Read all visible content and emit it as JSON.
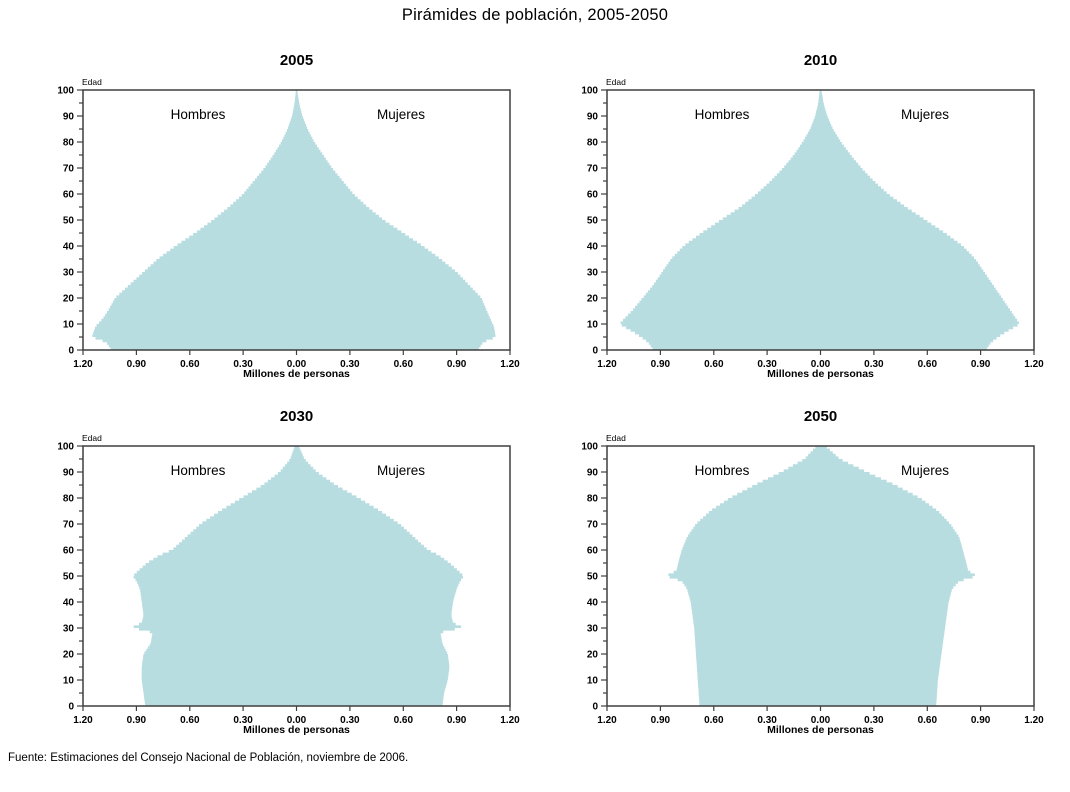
{
  "page": {
    "title": "Pirámides de población, 2005-2050",
    "source": "Fuente: Estimaciones del Consejo Nacional de Población, noviembre de 2006."
  },
  "colors": {
    "pyramid_fill": "#b8dde0",
    "axis_line": "#3f3f3f",
    "text": "#000000"
  },
  "chart_data": [
    {
      "type": "area",
      "subtype": "population-pyramid",
      "title": "2005",
      "xlabel": "Millones de personas",
      "ylabel": "Edad",
      "xlim_millions": [
        -1.2,
        1.2
      ],
      "ylim_age": [
        0,
        100
      ],
      "x_ticks": [
        "1.20",
        "0.90",
        "0.60",
        "0.30",
        "0.00",
        "0.30",
        "0.60",
        "0.90",
        "1.20"
      ],
      "y_ticks": [
        0,
        10,
        20,
        30,
        40,
        50,
        60,
        70,
        80,
        90,
        100
      ],
      "y_minor_step": 5,
      "grid": false,
      "series": [
        {
          "name": "Hombres",
          "side": "left",
          "unit": "millones",
          "points": [
            [
              0,
              1.04
            ],
            [
              3,
              1.07
            ],
            [
              5,
              1.15
            ],
            [
              9,
              1.13
            ],
            [
              12,
              1.09
            ],
            [
              15,
              1.06
            ],
            [
              20,
              1.02
            ],
            [
              25,
              0.94
            ],
            [
              30,
              0.86
            ],
            [
              35,
              0.78
            ],
            [
              40,
              0.68
            ],
            [
              45,
              0.57
            ],
            [
              50,
              0.47
            ],
            [
              55,
              0.38
            ],
            [
              60,
              0.3
            ],
            [
              65,
              0.24
            ],
            [
              70,
              0.18
            ],
            [
              75,
              0.13
            ],
            [
              80,
              0.085
            ],
            [
              85,
              0.05
            ],
            [
              90,
              0.025
            ],
            [
              95,
              0.011
            ],
            [
              100,
              0.003
            ]
          ]
        },
        {
          "name": "Mujeres",
          "side": "right",
          "unit": "millones",
          "points": [
            [
              0,
              1.02
            ],
            [
              3,
              1.05
            ],
            [
              5,
              1.12
            ],
            [
              9,
              1.11
            ],
            [
              12,
              1.09
            ],
            [
              15,
              1.07
            ],
            [
              20,
              1.04
            ],
            [
              25,
              0.97
            ],
            [
              30,
              0.9
            ],
            [
              35,
              0.81
            ],
            [
              40,
              0.71
            ],
            [
              45,
              0.6
            ],
            [
              50,
              0.49
            ],
            [
              55,
              0.4
            ],
            [
              60,
              0.32
            ],
            [
              65,
              0.26
            ],
            [
              70,
              0.2
            ],
            [
              75,
              0.15
            ],
            [
              80,
              0.1
            ],
            [
              85,
              0.062
            ],
            [
              90,
              0.033
            ],
            [
              95,
              0.015
            ],
            [
              100,
              0.004
            ]
          ]
        }
      ]
    },
    {
      "type": "area",
      "subtype": "population-pyramid",
      "title": "2010",
      "xlabel": "Millones de personas",
      "ylabel": "Edad",
      "xlim_millions": [
        -1.2,
        1.2
      ],
      "ylim_age": [
        0,
        100
      ],
      "x_ticks": [
        "1.20",
        "0.90",
        "0.60",
        "0.30",
        "0.00",
        "0.30",
        "0.60",
        "0.90",
        "1.20"
      ],
      "y_ticks": [
        0,
        10,
        20,
        30,
        40,
        50,
        60,
        70,
        80,
        90,
        100
      ],
      "y_minor_step": 5,
      "grid": false,
      "series": [
        {
          "name": "Hombres",
          "side": "left",
          "unit": "millones",
          "points": [
            [
              0,
              0.94
            ],
            [
              3,
              0.97
            ],
            [
              6,
              1.03
            ],
            [
              10,
              1.13
            ],
            [
              13,
              1.09
            ],
            [
              15,
              1.06
            ],
            [
              20,
              1.0
            ],
            [
              25,
              0.94
            ],
            [
              30,
              0.89
            ],
            [
              35,
              0.84
            ],
            [
              40,
              0.77
            ],
            [
              45,
              0.67
            ],
            [
              50,
              0.56
            ],
            [
              55,
              0.45
            ],
            [
              60,
              0.36
            ],
            [
              65,
              0.28
            ],
            [
              70,
              0.21
            ],
            [
              75,
              0.15
            ],
            [
              80,
              0.1
            ],
            [
              85,
              0.058
            ],
            [
              90,
              0.03
            ],
            [
              95,
              0.013
            ],
            [
              100,
              0.004
            ]
          ]
        },
        {
          "name": "Mujeres",
          "side": "right",
          "unit": "millones",
          "points": [
            [
              0,
              0.93
            ],
            [
              3,
              0.96
            ],
            [
              6,
              1.02
            ],
            [
              10,
              1.12
            ],
            [
              13,
              1.09
            ],
            [
              15,
              1.07
            ],
            [
              20,
              1.02
            ],
            [
              25,
              0.97
            ],
            [
              30,
              0.92
            ],
            [
              35,
              0.87
            ],
            [
              40,
              0.8
            ],
            [
              45,
              0.7
            ],
            [
              50,
              0.59
            ],
            [
              55,
              0.48
            ],
            [
              60,
              0.38
            ],
            [
              65,
              0.3
            ],
            [
              70,
              0.23
            ],
            [
              75,
              0.17
            ],
            [
              80,
              0.115
            ],
            [
              85,
              0.07
            ],
            [
              90,
              0.038
            ],
            [
              95,
              0.017
            ],
            [
              100,
              0.005
            ]
          ]
        }
      ]
    },
    {
      "type": "area",
      "subtype": "population-pyramid",
      "title": "2030",
      "xlabel": "Millones de personas",
      "ylabel": "Edad",
      "xlim_millions": [
        -1.2,
        1.2
      ],
      "ylim_age": [
        0,
        100
      ],
      "x_ticks": [
        "1.20",
        "0.90",
        "0.60",
        "0.30",
        "0.00",
        "0.30",
        "0.60",
        "0.90",
        "1.20"
      ],
      "y_ticks": [
        0,
        10,
        20,
        30,
        40,
        50,
        60,
        70,
        80,
        90,
        100
      ],
      "y_minor_step": 5,
      "grid": false,
      "series": [
        {
          "name": "Hombres",
          "side": "left",
          "unit": "millones",
          "points": [
            [
              0,
              0.85
            ],
            [
              5,
              0.86
            ],
            [
              10,
              0.87
            ],
            [
              15,
              0.87
            ],
            [
              20,
              0.86
            ],
            [
              24,
              0.82
            ],
            [
              28,
              0.81
            ],
            [
              29,
              0.84
            ],
            [
              30,
              0.93
            ],
            [
              32,
              0.87
            ],
            [
              35,
              0.86
            ],
            [
              40,
              0.87
            ],
            [
              45,
              0.88
            ],
            [
              48,
              0.9
            ],
            [
              50,
              0.92
            ],
            [
              52,
              0.89
            ],
            [
              55,
              0.84
            ],
            [
              58,
              0.77
            ],
            [
              60,
              0.7
            ],
            [
              65,
              0.62
            ],
            [
              70,
              0.54
            ],
            [
              75,
              0.43
            ],
            [
              80,
              0.31
            ],
            [
              85,
              0.19
            ],
            [
              90,
              0.095
            ],
            [
              95,
              0.035
            ],
            [
              100,
              0.01
            ]
          ]
        },
        {
          "name": "Mujeres",
          "side": "right",
          "unit": "millones",
          "points": [
            [
              0,
              0.82
            ],
            [
              5,
              0.83
            ],
            [
              10,
              0.85
            ],
            [
              15,
              0.86
            ],
            [
              20,
              0.85
            ],
            [
              24,
              0.82
            ],
            [
              28,
              0.81
            ],
            [
              29,
              0.84
            ],
            [
              30,
              0.94
            ],
            [
              32,
              0.88
            ],
            [
              35,
              0.87
            ],
            [
              40,
              0.88
            ],
            [
              45,
              0.9
            ],
            [
              48,
              0.92
            ],
            [
              50,
              0.94
            ],
            [
              52,
              0.91
            ],
            [
              55,
              0.86
            ],
            [
              58,
              0.8
            ],
            [
              60,
              0.74
            ],
            [
              65,
              0.66
            ],
            [
              70,
              0.58
            ],
            [
              75,
              0.47
            ],
            [
              80,
              0.35
            ],
            [
              85,
              0.22
            ],
            [
              90,
              0.115
            ],
            [
              95,
              0.045
            ],
            [
              100,
              0.013
            ]
          ]
        }
      ]
    },
    {
      "type": "area",
      "subtype": "population-pyramid",
      "title": "2050",
      "xlabel": "Millones de personas",
      "ylabel": "Edad",
      "xlim_millions": [
        -1.2,
        1.2
      ],
      "ylim_age": [
        0,
        100
      ],
      "x_ticks": [
        "1.20",
        "0.90",
        "0.60",
        "0.30",
        "0.00",
        "0.30",
        "0.60",
        "0.90",
        "1.20"
      ],
      "y_ticks": [
        0,
        10,
        20,
        30,
        40,
        50,
        60,
        70,
        80,
        90,
        100
      ],
      "y_minor_step": 5,
      "grid": false,
      "series": [
        {
          "name": "Hombres",
          "side": "left",
          "unit": "millones",
          "points": [
            [
              0,
              0.68
            ],
            [
              10,
              0.69
            ],
            [
              20,
              0.7
            ],
            [
              30,
              0.71
            ],
            [
              40,
              0.73
            ],
            [
              45,
              0.75
            ],
            [
              48,
              0.78
            ],
            [
              50,
              0.87
            ],
            [
              52,
              0.81
            ],
            [
              55,
              0.8
            ],
            [
              60,
              0.78
            ],
            [
              65,
              0.75
            ],
            [
              70,
              0.7
            ],
            [
              75,
              0.62
            ],
            [
              80,
              0.51
            ],
            [
              85,
              0.37
            ],
            [
              90,
              0.22
            ],
            [
              95,
              0.09
            ],
            [
              100,
              0.022
            ]
          ]
        },
        {
          "name": "Mujeres",
          "side": "right",
          "unit": "millones",
          "points": [
            [
              0,
              0.65
            ],
            [
              10,
              0.66
            ],
            [
              20,
              0.68
            ],
            [
              30,
              0.7
            ],
            [
              40,
              0.72
            ],
            [
              45,
              0.74
            ],
            [
              48,
              0.78
            ],
            [
              50,
              0.88
            ],
            [
              52,
              0.83
            ],
            [
              55,
              0.82
            ],
            [
              60,
              0.8
            ],
            [
              65,
              0.78
            ],
            [
              70,
              0.73
            ],
            [
              75,
              0.66
            ],
            [
              80,
              0.56
            ],
            [
              85,
              0.42
            ],
            [
              90,
              0.26
            ],
            [
              95,
              0.11
            ],
            [
              100,
              0.028
            ]
          ]
        }
      ]
    }
  ]
}
